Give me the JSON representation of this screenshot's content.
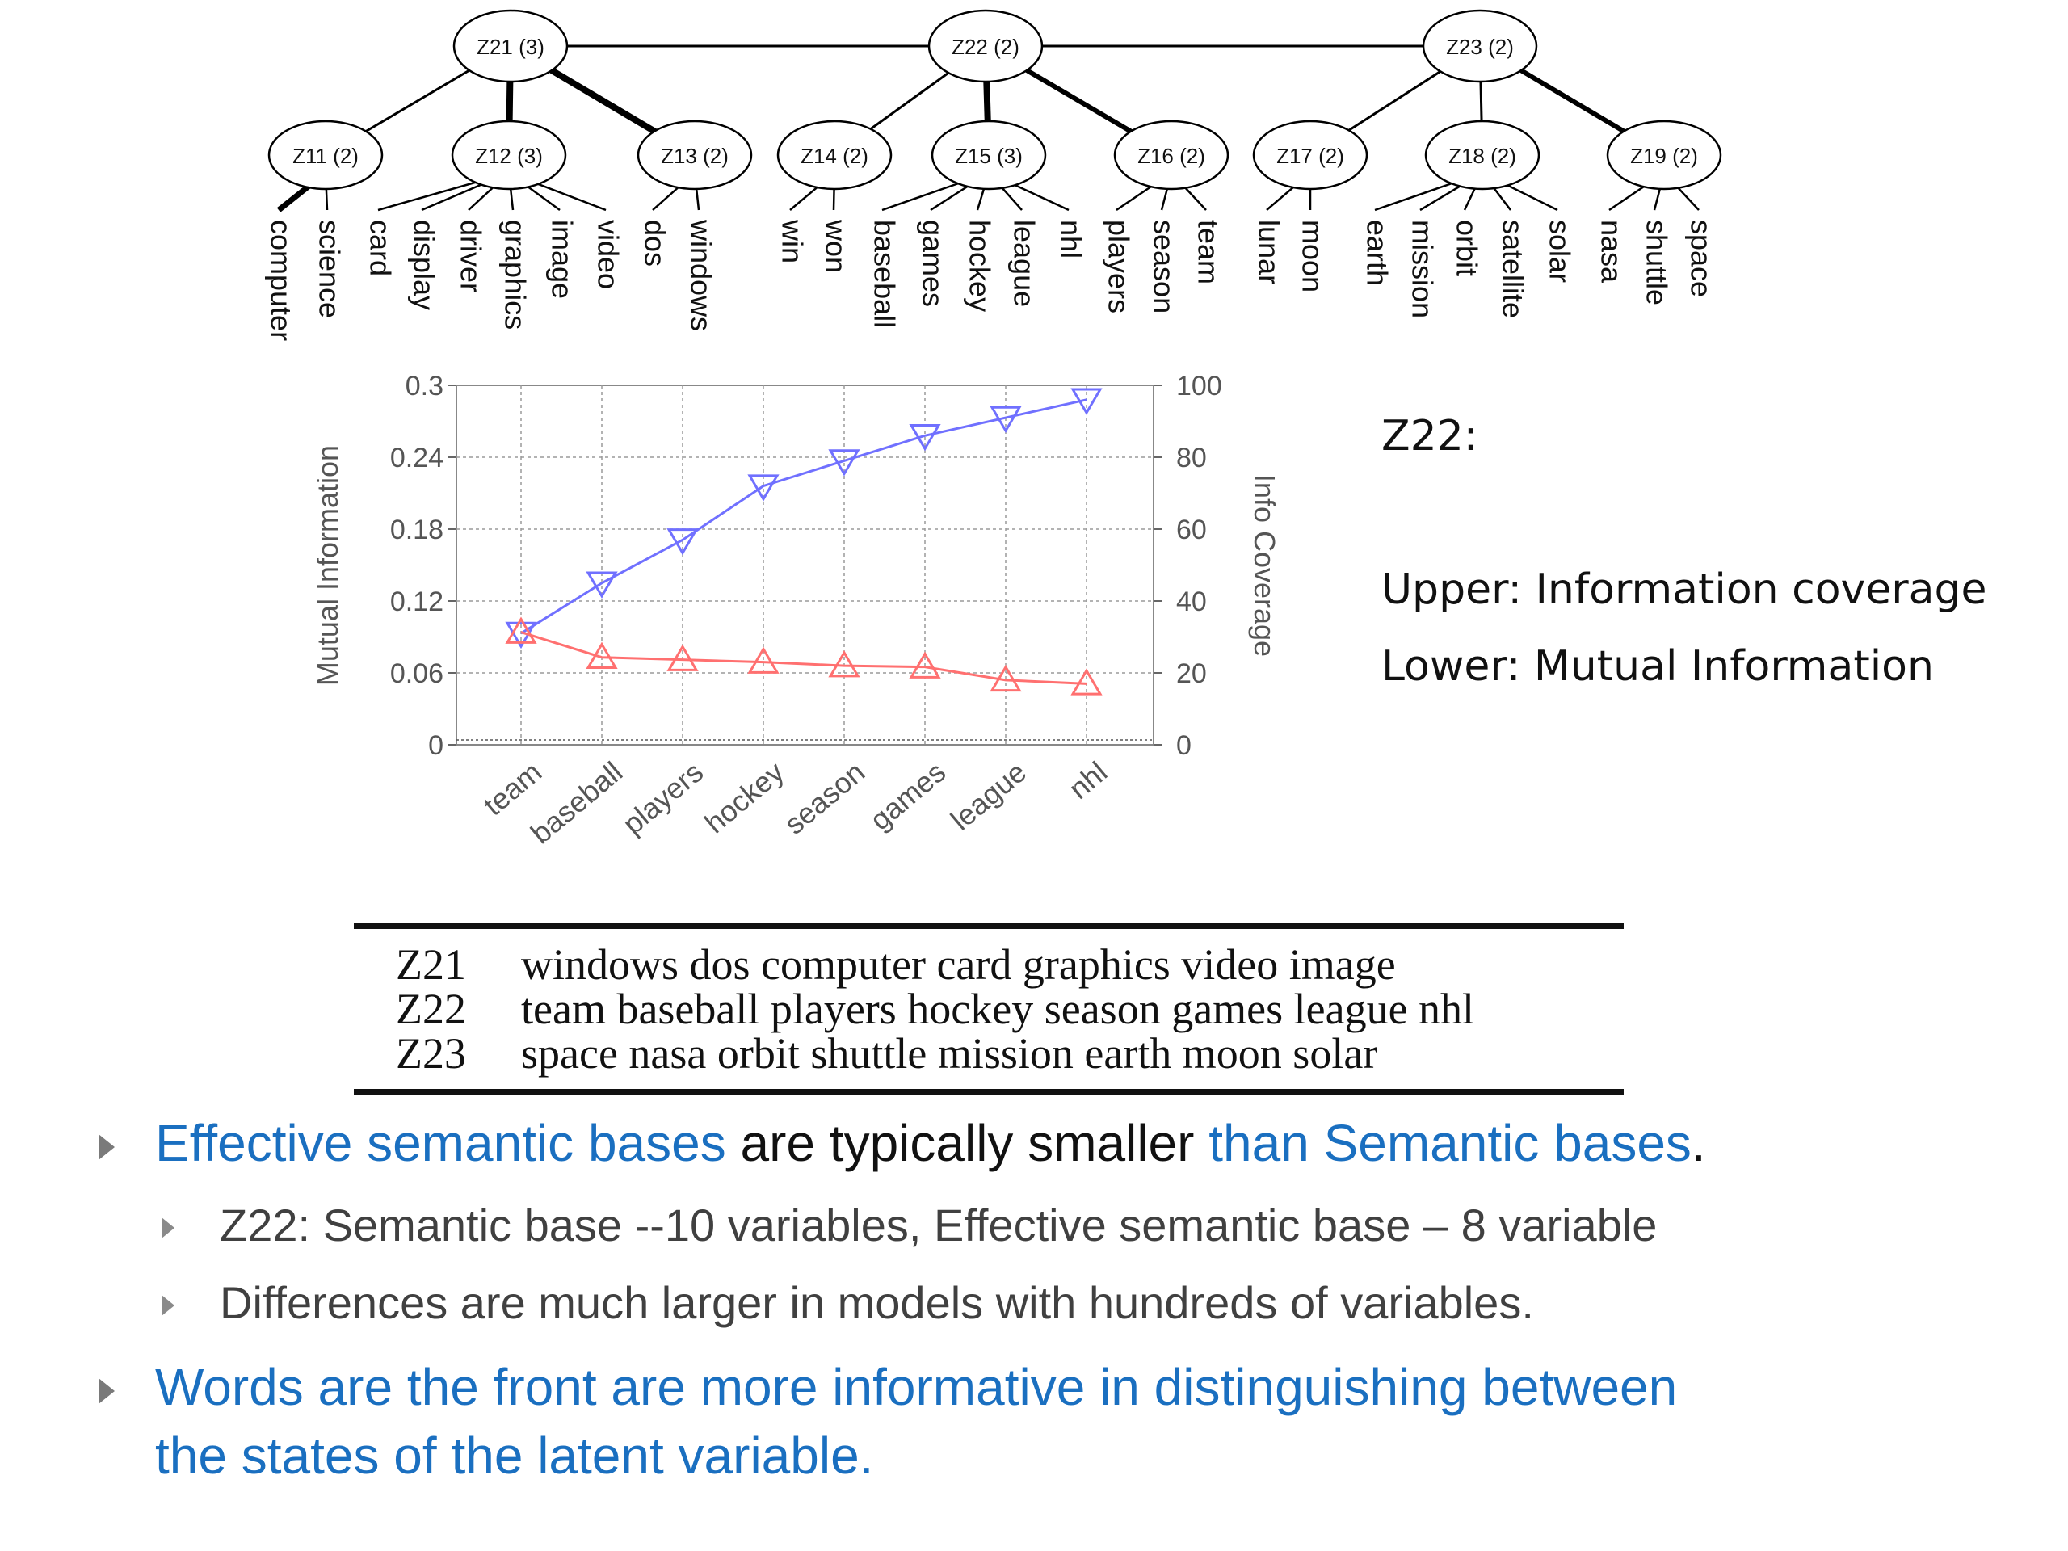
{
  "tree": {
    "top_nodes": [
      {
        "id": "z21",
        "label": "Z21 (3)"
      },
      {
        "id": "z22",
        "label": "Z22 (2)"
      },
      {
        "id": "z23",
        "label": "Z23 (2)"
      }
    ],
    "mid_nodes": [
      {
        "id": "z11",
        "label": "Z11 (2)",
        "parent": "z21",
        "words": [
          "computer",
          "science"
        ]
      },
      {
        "id": "z12",
        "label": "Z12 (3)",
        "parent": "z21",
        "words": [
          "card",
          "display",
          "driver",
          "graphics",
          "image",
          "video"
        ]
      },
      {
        "id": "z13",
        "label": "Z13 (2)",
        "parent": "z21",
        "words": [
          "dos",
          "windows"
        ]
      },
      {
        "id": "z14",
        "label": "Z14 (2)",
        "parent": "z22",
        "words": [
          "win",
          "won"
        ]
      },
      {
        "id": "z15",
        "label": "Z15 (3)",
        "parent": "z22",
        "words": [
          "baseball",
          "games",
          "hockey",
          "league",
          "nhl"
        ]
      },
      {
        "id": "z16",
        "label": "Z16 (2)",
        "parent": "z22",
        "words": [
          "players",
          "season",
          "team"
        ]
      },
      {
        "id": "z17",
        "label": "Z17 (2)",
        "parent": "z23",
        "words": [
          "lunar",
          "moon"
        ]
      },
      {
        "id": "z18",
        "label": "Z18 (2)",
        "parent": "z23",
        "words": [
          "earth",
          "mission",
          "orbit",
          "satellite",
          "solar"
        ]
      },
      {
        "id": "z19",
        "label": "Z19 (2)",
        "parent": "z23",
        "words": [
          "nasa",
          "shuttle",
          "space"
        ]
      }
    ]
  },
  "chart_data": {
    "type": "line",
    "categories": [
      "team",
      "baseball",
      "players",
      "hockey",
      "season",
      "games",
      "league",
      "nhl"
    ],
    "series": [
      {
        "name": "Info Coverage",
        "axis": "right",
        "marker": "down-triangle",
        "color": "#7070ff",
        "values": [
          31,
          45,
          57,
          72,
          79,
          86,
          91,
          96
        ]
      },
      {
        "name": "Mutual Information",
        "axis": "left",
        "marker": "up-triangle",
        "color": "#ff7070",
        "values": [
          0.094,
          0.073,
          0.071,
          0.069,
          0.066,
          0.065,
          0.054,
          0.051
        ]
      }
    ],
    "ylabel": "Mutual Information",
    "ylabel_right": "Info Coverage",
    "ylim": [
      0,
      0.3
    ],
    "yticks": [
      "0",
      "0.06",
      "0.12",
      "0.18",
      "0.24",
      "0.3"
    ],
    "ylim_right": [
      0,
      100
    ],
    "yticks_right": [
      "0",
      "20",
      "40",
      "60",
      "80",
      "100"
    ],
    "grid": true
  },
  "annotation": {
    "title": "Z22:",
    "upper": "Upper: Information coverage",
    "lower": "Lower: Mutual Information"
  },
  "table": {
    "rows": [
      {
        "id": "Z21",
        "words": "windows dos computer card graphics video image"
      },
      {
        "id": "Z22",
        "words": "team baseball players hockey season games league nhl"
      },
      {
        "id": "Z23",
        "words": "space nasa orbit shuttle mission earth moon solar"
      }
    ]
  },
  "bullets": {
    "b1": {
      "part1": "Effective semantic bases",
      "part2": " are typically smaller ",
      "part3": "than Semantic bases",
      "part4": "."
    },
    "sub1": "Z22: Semantic base  --10 variables, Effective semantic base – 8 variable",
    "sub2": "Differences are much larger in models with hundreds of variables.",
    "b2_line1": "Words are the front are more informative in distinguishing between",
    "b2_line2": "the states of the latent variable."
  },
  "colors": {
    "accent_blue": "#1a6fc0",
    "info_coverage": "#7070ff",
    "mutual_information": "#ff7070"
  }
}
